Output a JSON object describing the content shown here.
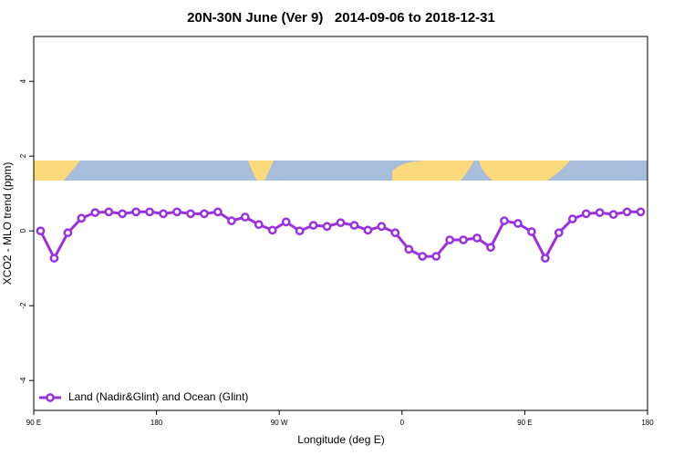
{
  "chart_data": {
    "type": "line",
    "title": "20N-30N June (Ver 9)   2014-09-06 to 2018-12-31",
    "x_label": "Longitude (deg E)",
    "y_label": "XCO2 - MLO trend (ppm)",
    "x": [
      95,
      105,
      115,
      125,
      135,
      145,
      155,
      165,
      175,
      185,
      195,
      205,
      215,
      225,
      235,
      245,
      255,
      265,
      275,
      285,
      295,
      305,
      315,
      325,
      335,
      345,
      355,
      365,
      375,
      385,
      395,
      405,
      415,
      425,
      435,
      445,
      455,
      465,
      475,
      485,
      495,
      505,
      515,
      525,
      535
    ],
    "series": [
      {
        "name": "Land (Nadir&Glint) and Ocean (Glint)",
        "color": "#9b30e0",
        "values": [
          0.0,
          -0.73,
          -0.05,
          0.34,
          0.49,
          0.51,
          0.46,
          0.51,
          0.51,
          0.46,
          0.51,
          0.46,
          0.46,
          0.51,
          0.27,
          0.37,
          0.17,
          0.02,
          0.24,
          0.0,
          0.15,
          0.12,
          0.22,
          0.15,
          0.02,
          0.12,
          -0.05,
          -0.49,
          -0.68,
          -0.68,
          -0.24,
          -0.24,
          -0.19,
          -0.44,
          0.27,
          0.2,
          -0.02,
          -0.73,
          -0.05,
          0.32,
          0.46,
          0.49,
          0.44,
          0.51,
          0.51
        ]
      }
    ],
    "xlim": [
      90,
      540
    ],
    "xticks": [
      {
        "value": 90,
        "label": "90 E"
      },
      180,
      {
        "value": 270,
        "label": "90 W"
      },
      {
        "value": 360,
        "label": "0"
      },
      {
        "value": 450,
        "label": "90 E"
      },
      {
        "value": 540,
        "label": "180"
      }
    ],
    "ylim": [
      -4.8,
      5.2
    ],
    "yticks": [
      -4,
      -2,
      0,
      2,
      4
    ],
    "legend": "bottom-left"
  }
}
